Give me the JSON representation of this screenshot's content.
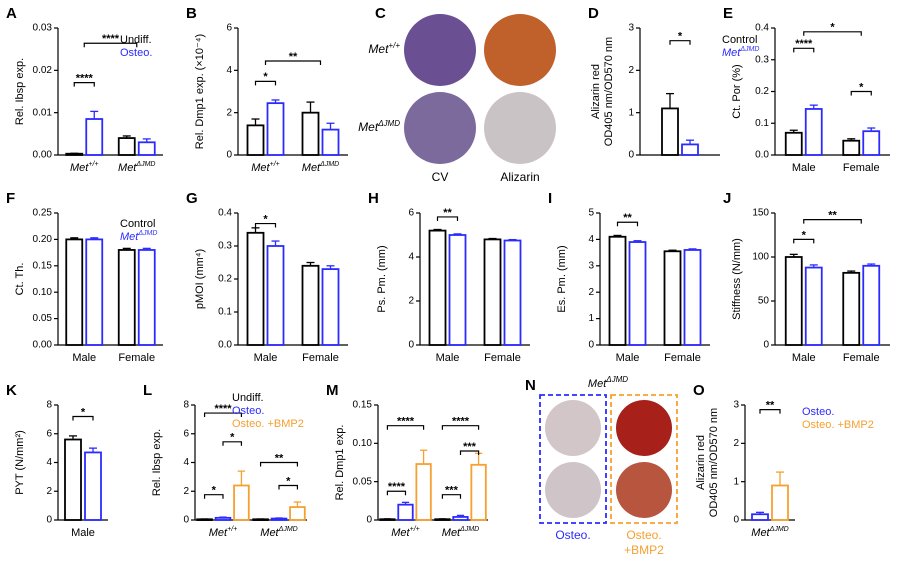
{
  "chart_data": [
    {
      "type": "bar",
      "label": "A",
      "ylabel": "Rel. Ibsp exp.",
      "ylim": [
        0,
        0.03
      ],
      "yticks": [
        {
          "value": 0,
          "label": "0.00"
        },
        0.01,
        0.02,
        0.03
      ],
      "categories": [
        [
          "Met",
          "+/+"
        ],
        [
          "Met",
          "ΔJMD"
        ]
      ],
      "legend": true,
      "series": [
        {
          "name": "Undiff.",
          "color": "#000000",
          "values": [
            0.0003,
            0.004
          ],
          "errors": [
            0.0001,
            0.0005
          ]
        },
        {
          "name": "Osteo.",
          "color": "#2b2bff",
          "values": [
            0.0085,
            0.003
          ],
          "errors": [
            0.0018,
            0.0008
          ]
        }
      ],
      "annotations": [
        "****",
        "****"
      ]
    },
    {
      "type": "bar",
      "label": "B",
      "ylabel": "Rel. Dmp1 exp. (×10⁻⁴)",
      "ylim": [
        0,
        6
      ],
      "yticks": [
        0,
        2,
        4,
        6
      ],
      "categories": [
        [
          "Met",
          "+/+"
        ],
        [
          "Met",
          "ΔJMD"
        ]
      ],
      "series": [
        {
          "name": "Undiff.",
          "color": "#000000",
          "values": [
            1.4,
            2.0
          ],
          "errors": [
            0.3,
            0.5
          ]
        },
        {
          "name": "Osteo.",
          "color": "#2b2bff",
          "values": [
            2.45,
            1.2
          ],
          "errors": [
            0.15,
            0.3
          ]
        }
      ],
      "annotations": [
        "*",
        "**"
      ]
    },
    {
      "type": "bar",
      "label": "D",
      "ylabel_lines": [
        "Alizarin red",
        "OD405 nm/OD570 nm"
      ],
      "ylim": [
        0,
        3
      ],
      "yticks": [
        0,
        1,
        2,
        3
      ],
      "legend": true,
      "series": [
        {
          "name": "Control",
          "color": "#000000",
          "values": [
            1.1
          ],
          "errors": [
            0.35
          ]
        },
        {
          "name": [
            "Met",
            "ΔJMD"
          ],
          "color": "#2b2bff",
          "values": [
            0.25
          ],
          "errors": [
            0.1
          ]
        }
      ],
      "annotations": [
        "*"
      ]
    },
    {
      "type": "bar",
      "label": "E",
      "ylabel": "Ct. Por (%)",
      "ylim": [
        0,
        0.4
      ],
      "yticks": [
        {
          "value": 0,
          "label": "0.0"
        },
        0.1,
        0.2,
        0.3,
        0.4
      ],
      "categories": [
        "Male",
        "Female"
      ],
      "series": [
        {
          "name": "Control",
          "color": "#000000",
          "values": [
            0.07,
            0.045
          ],
          "errors": [
            0.008,
            0.006
          ]
        },
        {
          "name": [
            "Met",
            "ΔJMD"
          ],
          "color": "#2b2bff",
          "values": [
            0.145,
            0.075
          ],
          "errors": [
            0.012,
            0.01
          ]
        }
      ],
      "annotations": [
        "****",
        "*",
        "*"
      ]
    },
    {
      "type": "bar",
      "label": "F",
      "ylabel": "Ct. Th.",
      "ylim": [
        0,
        0.25
      ],
      "yticks": [
        {
          "value": 0,
          "label": "0.00"
        },
        0.05,
        {
          "value": 0.1,
          "label": "0.10"
        },
        0.15,
        {
          "value": 0.2,
          "label": "0.20"
        },
        0.25
      ],
      "categories": [
        "Male",
        "Female"
      ],
      "legend": true,
      "series": [
        {
          "name": "Control",
          "color": "#000000",
          "values": [
            0.2,
            0.18
          ],
          "errors": [
            0.003,
            0.003
          ]
        },
        {
          "name": [
            "Met",
            "ΔJMD"
          ],
          "color": "#2b2bff",
          "values": [
            0.2,
            0.18
          ],
          "errors": [
            0.003,
            0.003
          ]
        }
      ],
      "annotations": []
    },
    {
      "type": "bar",
      "label": "G",
      "ylabel": "pMOI (mm⁴)",
      "ylim": [
        0,
        0.4
      ],
      "yticks": [
        {
          "value": 0,
          "label": "0.0"
        },
        0.1,
        0.2,
        0.3,
        0.4
      ],
      "categories": [
        "Male",
        "Female"
      ],
      "series": [
        {
          "name": "Control",
          "color": "#000000",
          "values": [
            0.34,
            0.24
          ],
          "errors": [
            0.015,
            0.01
          ]
        },
        {
          "name": [
            "Met",
            "ΔJMD"
          ],
          "color": "#2b2bff",
          "values": [
            0.3,
            0.23
          ],
          "errors": [
            0.015,
            0.01
          ]
        }
      ],
      "annotations": [
        "*"
      ]
    },
    {
      "type": "bar",
      "label": "H",
      "ylabel": "Ps. Pm. (mm)",
      "ylim": [
        0,
        6
      ],
      "yticks": [
        0,
        2,
        4,
        6
      ],
      "categories": [
        "Male",
        "Female"
      ],
      "series": [
        {
          "name": "Control",
          "color": "#000000",
          "values": [
            5.2,
            4.8
          ],
          "errors": [
            0.05,
            0.04
          ]
        },
        {
          "name": [
            "Met",
            "ΔJMD"
          ],
          "color": "#2b2bff",
          "values": [
            5.0,
            4.75
          ],
          "errors": [
            0.05,
            0.04
          ]
        }
      ],
      "annotations": [
        "**"
      ]
    },
    {
      "type": "bar",
      "label": "I",
      "ylabel": "Es. Pm. (mm)",
      "ylim": [
        0,
        5
      ],
      "yticks": [
        0,
        1,
        2,
        3,
        4,
        5
      ],
      "categories": [
        "Male",
        "Female"
      ],
      "series": [
        {
          "name": "Control",
          "color": "#000000",
          "values": [
            4.1,
            3.55
          ],
          "errors": [
            0.05,
            0.04
          ]
        },
        {
          "name": [
            "Met",
            "ΔJMD"
          ],
          "color": "#2b2bff",
          "values": [
            3.9,
            3.6
          ],
          "errors": [
            0.05,
            0.04
          ]
        }
      ],
      "annotations": [
        "**"
      ]
    },
    {
      "type": "bar",
      "label": "J",
      "ylabel": "Stiffness (N/mm)",
      "ylim": [
        0,
        150
      ],
      "yticks": [
        0,
        50,
        100,
        150
      ],
      "categories": [
        "Male",
        "Female"
      ],
      "series": [
        {
          "name": "Control",
          "color": "#000000",
          "values": [
            100,
            82
          ],
          "errors": [
            3,
            2
          ]
        },
        {
          "name": [
            "Met",
            "ΔJMD"
          ],
          "color": "#2b2bff",
          "values": [
            88,
            90
          ],
          "errors": [
            3,
            2
          ]
        }
      ],
      "annotations": [
        "*",
        "**"
      ]
    },
    {
      "type": "bar",
      "label": "K",
      "ylabel": "PYT (N/mm²)",
      "ylim": [
        0,
        8
      ],
      "yticks": [
        0,
        2,
        4,
        6,
        8
      ],
      "categories": [
        "Male"
      ],
      "series": [
        {
          "name": "Control",
          "color": "#000000",
          "values": [
            5.6
          ],
          "errors": [
            0.25
          ]
        },
        {
          "name": [
            "Met",
            "ΔJMD"
          ],
          "color": "#2b2bff",
          "values": [
            4.7
          ],
          "errors": [
            0.3
          ]
        }
      ],
      "annotations": [
        "*"
      ]
    },
    {
      "type": "bar",
      "label": "L",
      "ylabel": "Rel. Ibsp exp.",
      "ylim": [
        0,
        8
      ],
      "yticks": [
        0,
        2,
        4,
        6,
        8
      ],
      "categories": [
        [
          "Met",
          "+/+"
        ],
        [
          "Met",
          "ΔJMD"
        ]
      ],
      "legend": true,
      "series": [
        {
          "name": "Undiff.",
          "color": "#000000",
          "values": [
            0.05,
            0.05
          ],
          "errors": [
            0.02,
            0.02
          ]
        },
        {
          "name": "Osteo.",
          "color": "#2b2bff",
          "values": [
            0.15,
            0.1
          ],
          "errors": [
            0.05,
            0.04
          ]
        },
        {
          "name": "Osteo. +BMP2",
          "color": "#f5a030",
          "values": [
            2.4,
            0.9
          ],
          "errors": [
            1.0,
            0.35
          ]
        }
      ],
      "annotations": [
        "****",
        "*",
        "*",
        "**",
        "*"
      ]
    },
    {
      "type": "bar",
      "label": "M",
      "ylabel": "Rel. Dmp1 exp.",
      "ylim": [
        0,
        0.15
      ],
      "yticks": [
        {
          "value": 0,
          "label": "0"
        },
        0.05,
        {
          "value": 0.1,
          "label": "0.10"
        },
        0.15
      ],
      "categories": [
        [
          "Met",
          "+/+"
        ],
        [
          "Met",
          "ΔJMD"
        ]
      ],
      "series": [
        {
          "name": "Undiff.",
          "color": "#000000",
          "values": [
            0.001,
            0.001
          ],
          "errors": [
            0.0005,
            0.0005
          ]
        },
        {
          "name": "Osteo.",
          "color": "#2b2bff",
          "values": [
            0.02,
            0.004
          ],
          "errors": [
            0.003,
            0.002
          ]
        },
        {
          "name": "Osteo. +BMP2",
          "color": "#f5a030",
          "values": [
            0.073,
            0.072
          ],
          "errors": [
            0.018,
            0.015
          ]
        }
      ],
      "annotations": [
        "****",
        "****",
        "****",
        "***",
        "***"
      ]
    },
    {
      "type": "bar",
      "label": "O",
      "ylabel_lines": [
        "Alizarin red",
        "OD405 nm/OD570 nm"
      ],
      "ylim": [
        0,
        3
      ],
      "yticks": [
        0,
        1,
        2,
        3
      ],
      "categories": [
        [
          "Met",
          "ΔJMD"
        ]
      ],
      "legend": true,
      "series": [
        {
          "name": "Osteo.",
          "color": "#2b2bff",
          "values": [
            0.15
          ],
          "errors": [
            0.05
          ]
        },
        {
          "name": "Osteo. +BMP2",
          "color": "#f5a030",
          "values": [
            0.9
          ],
          "errors": [
            0.35
          ]
        }
      ],
      "annotations": [
        "**"
      ]
    }
  ],
  "images": [
    {
      "label": "C",
      "row_labels": [
        [
          "Met",
          "+/+"
        ],
        [
          "Met",
          "ΔJMD"
        ]
      ],
      "column_labels": [
        "CV",
        "Alizarin"
      ]
    },
    {
      "label": "N",
      "title": [
        "Met",
        "ΔJMD"
      ],
      "column_labels": [
        [
          "Osteo."
        ],
        [
          "Osteo.",
          "+BMP2"
        ]
      ]
    }
  ]
}
